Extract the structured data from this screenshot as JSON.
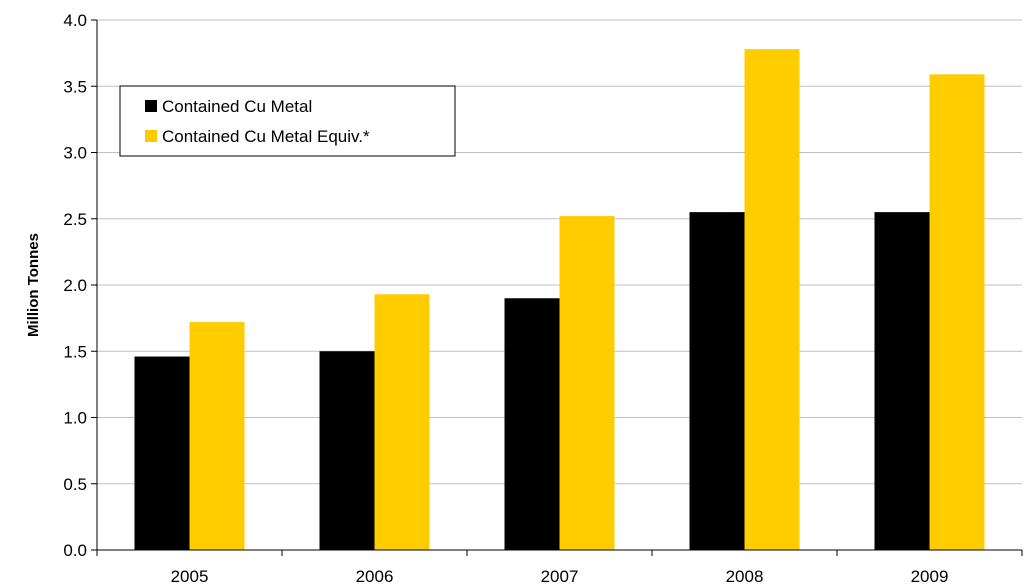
{
  "chart_data": {
    "type": "bar",
    "title": "",
    "xlabel": "",
    "ylabel": "Million Tonnes",
    "categories": [
      "2005",
      "2006",
      "2007",
      "2008",
      "2009"
    ],
    "series": [
      {
        "name": "Contained Cu Metal",
        "color": "#000000",
        "values": [
          1.46,
          1.5,
          1.9,
          2.55,
          2.55
        ]
      },
      {
        "name": "Contained Cu Metal Equiv.*",
        "color": "#FFCC00",
        "values": [
          1.72,
          1.93,
          2.52,
          3.78,
          3.59
        ]
      }
    ],
    "ylim": [
      0,
      4
    ],
    "yticks": [
      "0.0",
      "0.5",
      "1.0",
      "1.5",
      "2.0",
      "2.5",
      "3.0",
      "3.5",
      "4.0"
    ],
    "grid": true,
    "legend_position": "top-left"
  }
}
